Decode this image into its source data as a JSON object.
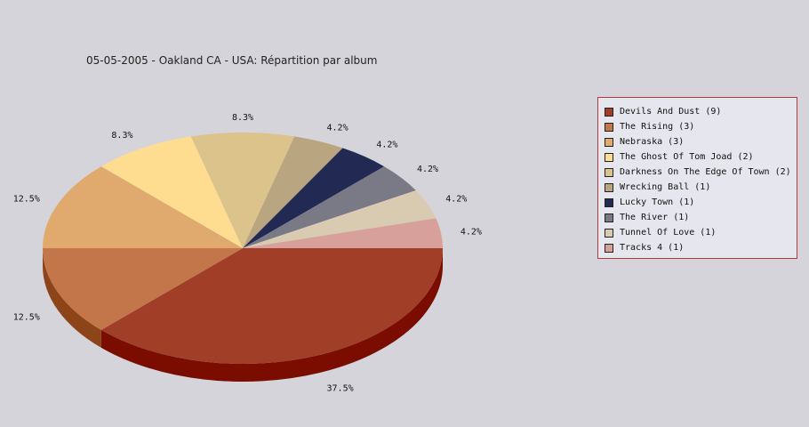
{
  "chart_data": {
    "type": "pie",
    "title": "05-05-2005 - Oakland CA - USA:  Répartition par album",
    "legend_position": "right",
    "slices": [
      {
        "label": "Devils And Dust (9)",
        "value": 9,
        "percent": "37.5%",
        "color": "#a03e28",
        "side": "#7a0c00"
      },
      {
        "label": "The Rising (3)",
        "value": 3,
        "percent": "12.5%",
        "color": "#c2764a",
        "side": "#8c4418"
      },
      {
        "label": "Nebraska (3)",
        "value": 3,
        "percent": "12.5%",
        "color": "#e0aa6e",
        "side": "#a87838"
      },
      {
        "label": "The Ghost Of Tom Joad (2)",
        "value": 2,
        "percent": "8.3%",
        "color": "#ffdd90",
        "side": "#c8a860"
      },
      {
        "label": "Darkness On The Edge Of Town (2)",
        "value": 2,
        "percent": "8.3%",
        "color": "#dcc38c",
        "side": "#a8905a"
      },
      {
        "label": "Wrecking Ball (1)",
        "value": 1,
        "percent": "4.2%",
        "color": "#b9a680",
        "side": "#86744e"
      },
      {
        "label": "Lucky Town (1)",
        "value": 1,
        "percent": "4.2%",
        "color": "#222953",
        "side": "#0e1230"
      },
      {
        "label": "The River (1)",
        "value": 1,
        "percent": "4.2%",
        "color": "#7a7a86",
        "side": "#4c4c58"
      },
      {
        "label": "Tunnel Of Love (1)",
        "value": 1,
        "percent": "4.2%",
        "color": "#d8cbb2",
        "side": "#a89880"
      },
      {
        "label": "Tracks 4 (1)",
        "value": 1,
        "percent": "4.2%",
        "color": "#d8a09a",
        "side": "#a87068"
      }
    ]
  }
}
